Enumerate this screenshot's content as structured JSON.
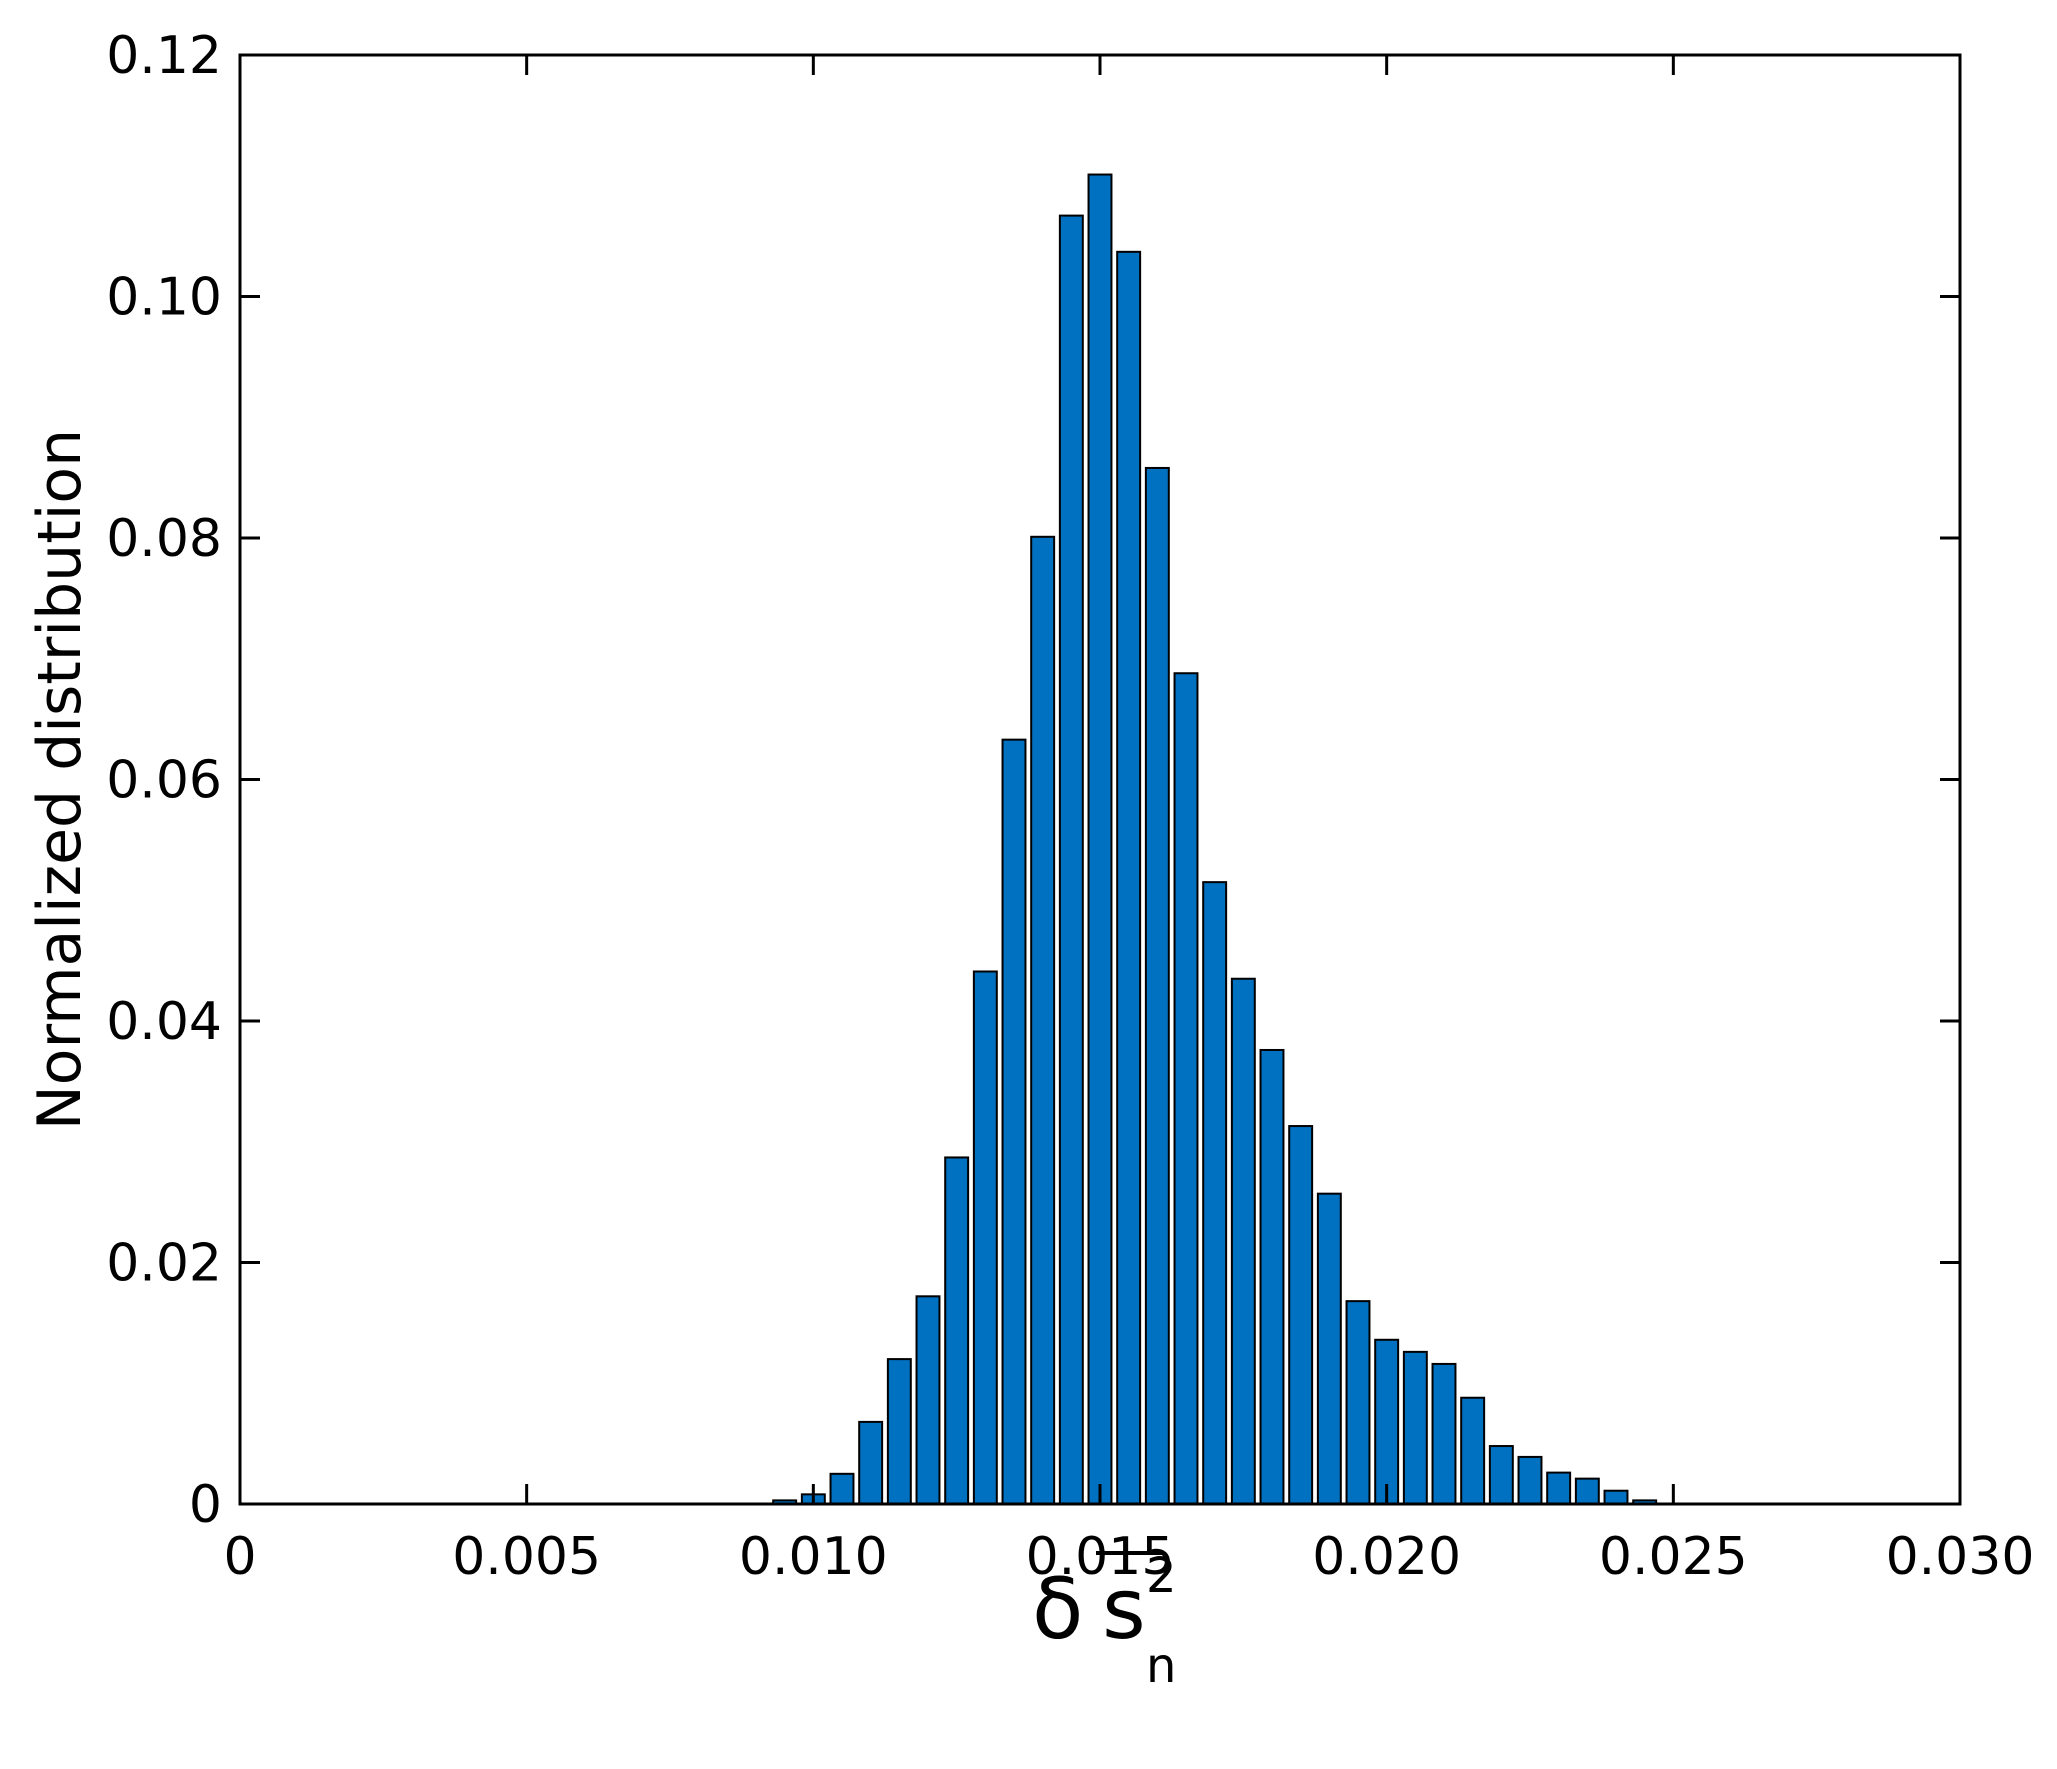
{
  "chart_data": {
    "type": "bar",
    "title": "",
    "xlabel": {
      "symbol": "δ",
      "base": "s",
      "superscript": "2",
      "subscript": "n"
    },
    "ylabel": "Normalized distribution",
    "xlim": [
      0,
      0.03
    ],
    "ylim": [
      0,
      0.12
    ],
    "xticks": [
      "0",
      "0.005",
      "0.010",
      "0.015",
      "0.020",
      "0.025",
      "0.030"
    ],
    "yticks": [
      "0",
      "0.02",
      "0.04",
      "0.06",
      "0.08",
      "0.10",
      "0.12"
    ],
    "bar_width": 0.0004,
    "bar_color": "#0070c0",
    "grid": false,
    "x": [
      0.0095,
      0.01,
      0.0105,
      0.011,
      0.0115,
      0.012,
      0.0125,
      0.013,
      0.0135,
      0.014,
      0.0145,
      0.015,
      0.0155,
      0.016,
      0.0165,
      0.017,
      0.0175,
      0.018,
      0.0185,
      0.019,
      0.0195,
      0.02,
      0.0205,
      0.021,
      0.0215,
      0.022,
      0.0225,
      0.023,
      0.0235,
      0.024,
      0.0245
    ],
    "values": [
      0.0003,
      0.0008,
      0.0025,
      0.0068,
      0.012,
      0.0172,
      0.0287,
      0.0441,
      0.0633,
      0.0801,
      0.1067,
      0.1101,
      0.1037,
      0.0858,
      0.0688,
      0.0515,
      0.0435,
      0.0376,
      0.0313,
      0.0257,
      0.0168,
      0.0136,
      0.0126,
      0.0116,
      0.0088,
      0.0048,
      0.0039,
      0.0026,
      0.0021,
      0.0011,
      0.0003
    ]
  }
}
